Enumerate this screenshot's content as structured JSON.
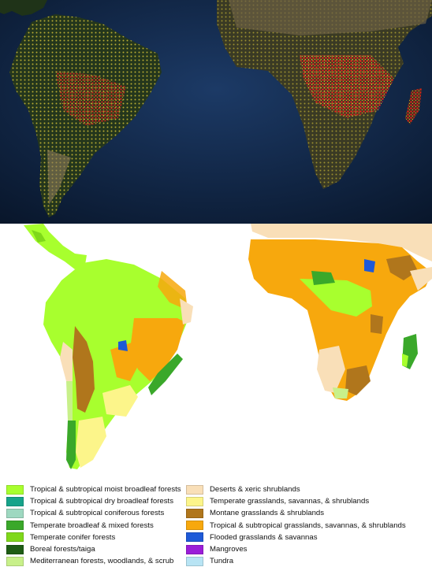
{
  "legend": {
    "left_items": [
      {
        "label": "Tropical & subtropical moist broadleaf forests",
        "color": "#a8ff2e"
      },
      {
        "label": "Tropical & subtropical dry broadleaf forests",
        "color": "#16a38a"
      },
      {
        "label": "Tropical & subtropical coniferous forests",
        "color": "#9ed8c0"
      },
      {
        "label": "Temperate broadleaf & mixed forests",
        "color": "#3aa82a"
      },
      {
        "label": "Temperate conifer forests",
        "color": "#7fd81a"
      },
      {
        "label": "Boreal forests/taiga",
        "color": "#1e5c14"
      },
      {
        "label": "Mediterranean forests, woodlands, & scrub",
        "color": "#c8f08a"
      }
    ],
    "right_items": [
      {
        "label": "Deserts & xeric shrublands",
        "color": "#f9dfb8"
      },
      {
        "label": "Temperate grasslands, savannas, & shrublands",
        "color": "#fcf58a"
      },
      {
        "label": "Montane grasslands & shrublands",
        "color": "#b0761c"
      },
      {
        "label": "Tropical & subtropical grasslands, savannas, & shrublands",
        "color": "#f7a80d"
      },
      {
        "label": "Flooded grasslands & savannas",
        "color": "#1e5ad8"
      },
      {
        "label": "Mangroves",
        "color": "#9b1ed8"
      },
      {
        "label": "Tundra",
        "color": "#b8e4f4"
      }
    ]
  }
}
